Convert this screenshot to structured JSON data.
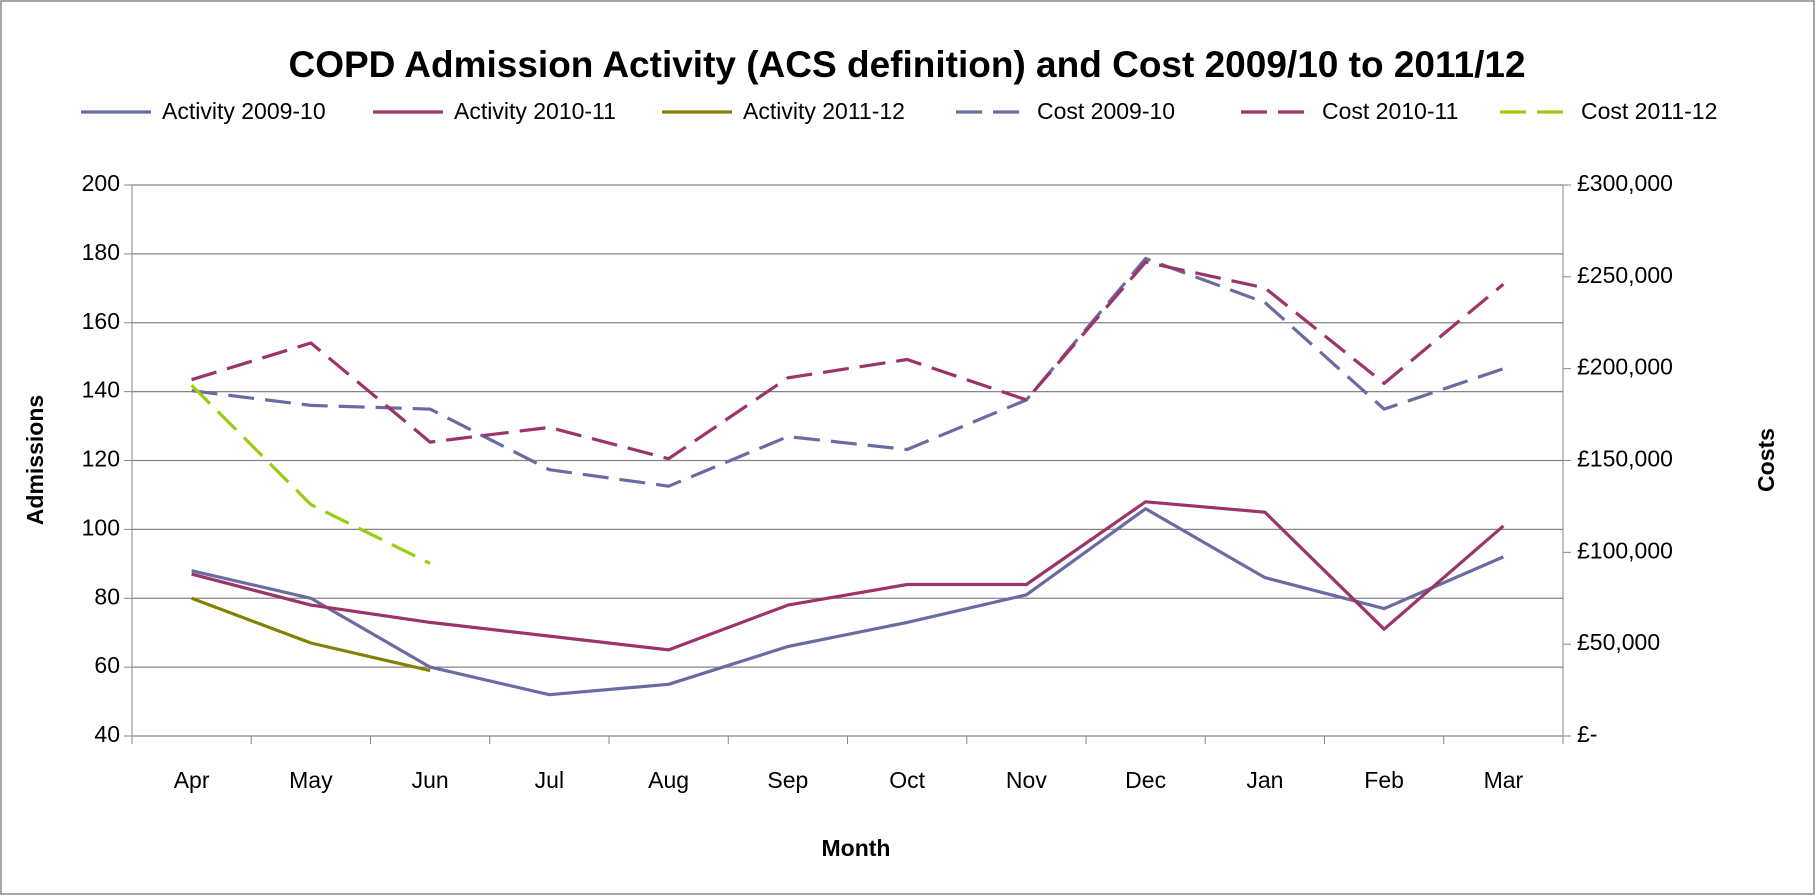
{
  "chart_data": {
    "type": "line",
    "title": "COPD Admission Activity (ACS definition) and Cost 2009/10 to 2011/12",
    "x_label": "Month",
    "y_label": "Admissions",
    "y2_label": "Costs",
    "categories": [
      "Apr",
      "May",
      "Jun",
      "Jul",
      "Aug",
      "Sep",
      "Oct",
      "Nov",
      "Dec",
      "Jan",
      "Feb",
      "Mar"
    ],
    "ylim": [
      40,
      200
    ],
    "yticks": [
      40,
      60,
      80,
      100,
      120,
      140,
      160,
      180,
      200
    ],
    "y2lim": [
      0,
      300000
    ],
    "y2ticks": [
      {
        "value": 0,
        "label": "£-"
      },
      {
        "value": 50000,
        "label": "£50,000"
      },
      {
        "value": 100000,
        "label": "£100,000"
      },
      {
        "value": 150000,
        "label": "£150,000"
      },
      {
        "value": 200000,
        "label": "£200,000"
      },
      {
        "value": 250000,
        "label": "£250,000"
      },
      {
        "value": 300000,
        "label": "£300,000"
      }
    ],
    "grid": true,
    "legend": "top",
    "series": [
      {
        "name": "Activity 2009-10",
        "color": "#6b6ba3",
        "dashed": false,
        "values": [
          88,
          80,
          60,
          52,
          55,
          66,
          73,
          81,
          106,
          86,
          77,
          92
        ]
      },
      {
        "name": "Activity 2010-11",
        "color": "#9b3468",
        "dashed": false,
        "values": [
          87,
          78,
          73,
          69,
          65,
          78,
          84,
          84,
          108,
          105,
          71,
          101
        ]
      },
      {
        "name": "Activity 2011-12",
        "color": "#848000",
        "dashed": false,
        "values": [
          80,
          67,
          59,
          null,
          null,
          null,
          null,
          null,
          null,
          null,
          null,
          null
        ]
      },
      {
        "name": "Cost 2009-10",
        "color": "#6b6ba3",
        "dashed": true,
        "axis": "y2",
        "values": [
          188000,
          180000,
          178000,
          145000,
          136000,
          163000,
          156000,
          183000,
          260000,
          236000,
          178000,
          200000
        ]
      },
      {
        "name": "Cost 2010-11",
        "color": "#9b3468",
        "dashed": true,
        "axis": "y2",
        "values": [
          194000,
          214000,
          160000,
          168000,
          151000,
          195000,
          205000,
          183000,
          258000,
          244000,
          192000,
          246000
        ]
      },
      {
        "name": "Cost 2011-12",
        "color": "#9acd12",
        "dashed": true,
        "axis": "y2",
        "values": [
          191000,
          126000,
          94000,
          null,
          null,
          null,
          null,
          null,
          null,
          null,
          null,
          null
        ]
      }
    ]
  }
}
